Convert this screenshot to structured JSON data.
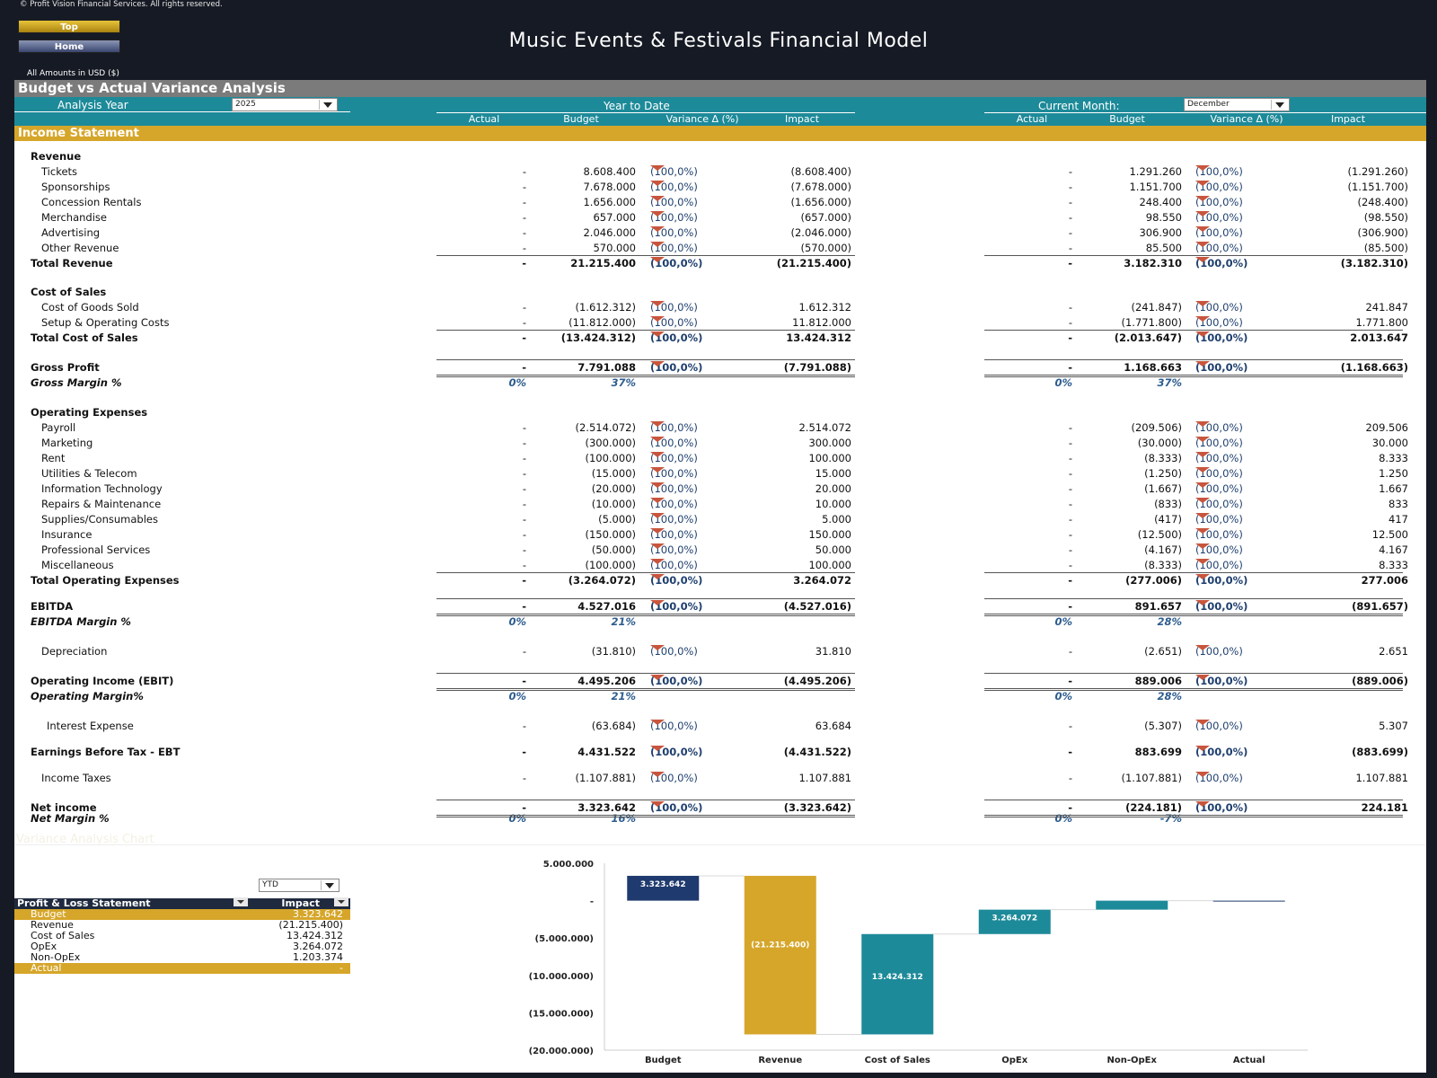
{
  "header": {
    "copyright": "© Profit Vision Financial Services. All rights reserved.",
    "nav_top": "Top",
    "nav_home": "Home",
    "title": "Music Events & Festivals Financial Model",
    "amounts_note": "All Amounts in  USD ($)"
  },
  "banner": "Budget vs Actual Variance Analysis",
  "controls": {
    "analysis_year_label": "Analysis Year",
    "analysis_year_value": "2025",
    "ytd_label": "Year to Date",
    "current_month_label": "Current Month:",
    "current_month_value": "December"
  },
  "columns": {
    "actual": "Actual",
    "budget": "Budget",
    "variance": "Variance Δ  (%)",
    "impact": "Impact"
  },
  "section_title": "Income Statement",
  "rows": [
    {
      "label": "Revenue",
      "style": "hdr"
    },
    {
      "label": "Tickets",
      "style": "item",
      "ya": "-",
      "yb": "8.608.400",
      "yv": "(100,0%)",
      "yi": "(8.608.400)",
      "ma": "-",
      "mb": "1.291.260",
      "mv": "(100,0%)",
      "mi": "(1.291.260)"
    },
    {
      "label": "Sponsorships",
      "style": "item",
      "ya": "-",
      "yb": "7.678.000",
      "yv": "(100,0%)",
      "yi": "(7.678.000)",
      "ma": "-",
      "mb": "1.151.700",
      "mv": "(100,0%)",
      "mi": "(1.151.700)"
    },
    {
      "label": "Concession Rentals",
      "style": "item",
      "ya": "-",
      "yb": "1.656.000",
      "yv": "(100,0%)",
      "yi": "(1.656.000)",
      "ma": "-",
      "mb": "248.400",
      "mv": "(100,0%)",
      "mi": "(248.400)"
    },
    {
      "label": "Merchandise",
      "style": "item",
      "ya": "-",
      "yb": "657.000",
      "yv": "(100,0%)",
      "yi": "(657.000)",
      "ma": "-",
      "mb": "98.550",
      "mv": "(100,0%)",
      "mi": "(98.550)"
    },
    {
      "label": "Advertising",
      "style": "item",
      "ya": "-",
      "yb": "2.046.000",
      "yv": "(100,0%)",
      "yi": "(2.046.000)",
      "ma": "-",
      "mb": "306.900",
      "mv": "(100,0%)",
      "mi": "(306.900)"
    },
    {
      "label": "Other Revenue",
      "style": "item",
      "ya": "-",
      "yb": "570.000",
      "yv": "(100,0%)",
      "yi": "(570.000)",
      "ma": "-",
      "mb": "85.500",
      "mv": "(100,0%)",
      "mi": "(85.500)"
    },
    {
      "label": "Total Revenue",
      "style": "total",
      "ya": "-",
      "yb": "21.215.400",
      "yv": "(100,0%)",
      "yi": "(21.215.400)",
      "ma": "-",
      "mb": "3.182.310",
      "mv": "(100,0%)",
      "mi": "(3.182.310)"
    },
    {
      "label": "Cost of Sales",
      "style": "hdr"
    },
    {
      "label": "Cost of Goods Sold",
      "style": "item",
      "ya": "-",
      "yb": "(1.612.312)",
      "yv": "(100,0%)",
      "yi": "1.612.312",
      "ma": "-",
      "mb": "(241.847)",
      "mv": "(100,0%)",
      "mi": "241.847"
    },
    {
      "label": "Setup & Operating Costs",
      "style": "item",
      "ya": "-",
      "yb": "(11.812.000)",
      "yv": "(100,0%)",
      "yi": "11.812.000",
      "ma": "-",
      "mb": "(1.771.800)",
      "mv": "(100,0%)",
      "mi": "1.771.800"
    },
    {
      "label": "Total Cost of Sales",
      "style": "total",
      "ya": "-",
      "yb": "(13.424.312)",
      "yv": "(100,0%)",
      "yi": "13.424.312",
      "ma": "-",
      "mb": "(2.013.647)",
      "mv": "(100,0%)",
      "mi": "2.013.647"
    },
    {
      "label": "Gross Profit",
      "style": "total",
      "ya": "-",
      "yb": "7.791.088",
      "yv": "(100,0%)",
      "yi": "(7.791.088)",
      "ma": "-",
      "mb": "1.168.663",
      "mv": "(100,0%)",
      "mi": "(1.168.663)"
    },
    {
      "label": "Gross Margin %",
      "style": "pct",
      "ya": "0%",
      "yb": "37%",
      "ma": "0%",
      "mb": "37%"
    },
    {
      "label": "Operating Expenses",
      "style": "hdr"
    },
    {
      "label": "Payroll",
      "style": "item",
      "ya": "-",
      "yb": "(2.514.072)",
      "yv": "(100,0%)",
      "yi": "2.514.072",
      "ma": "-",
      "mb": "(209.506)",
      "mv": "(100,0%)",
      "mi": "209.506"
    },
    {
      "label": "Marketing",
      "style": "item",
      "ya": "-",
      "yb": "(300.000)",
      "yv": "(100,0%)",
      "yi": "300.000",
      "ma": "-",
      "mb": "(30.000)",
      "mv": "(100,0%)",
      "mi": "30.000"
    },
    {
      "label": "Rent",
      "style": "item",
      "ya": "-",
      "yb": "(100.000)",
      "yv": "(100,0%)",
      "yi": "100.000",
      "ma": "-",
      "mb": "(8.333)",
      "mv": "(100,0%)",
      "mi": "8.333"
    },
    {
      "label": "Utilities & Telecom",
      "style": "item",
      "ya": "-",
      "yb": "(15.000)",
      "yv": "(100,0%)",
      "yi": "15.000",
      "ma": "-",
      "mb": "(1.250)",
      "mv": "(100,0%)",
      "mi": "1.250"
    },
    {
      "label": "Information Technology",
      "style": "item",
      "ya": "-",
      "yb": "(20.000)",
      "yv": "(100,0%)",
      "yi": "20.000",
      "ma": "-",
      "mb": "(1.667)",
      "mv": "(100,0%)",
      "mi": "1.667"
    },
    {
      "label": "Repairs & Maintenance",
      "style": "item",
      "ya": "-",
      "yb": "(10.000)",
      "yv": "(100,0%)",
      "yi": "10.000",
      "ma": "-",
      "mb": "(833)",
      "mv": "(100,0%)",
      "mi": "833"
    },
    {
      "label": "Supplies/Consumables",
      "style": "item",
      "ya": "-",
      "yb": "(5.000)",
      "yv": "(100,0%)",
      "yi": "5.000",
      "ma": "-",
      "mb": "(417)",
      "mv": "(100,0%)",
      "mi": "417"
    },
    {
      "label": "Insurance",
      "style": "item",
      "ya": "-",
      "yb": "(150.000)",
      "yv": "(100,0%)",
      "yi": "150.000",
      "ma": "-",
      "mb": "(12.500)",
      "mv": "(100,0%)",
      "mi": "12.500"
    },
    {
      "label": "Professional Services",
      "style": "item",
      "ya": "-",
      "yb": "(50.000)",
      "yv": "(100,0%)",
      "yi": "50.000",
      "ma": "-",
      "mb": "(4.167)",
      "mv": "(100,0%)",
      "mi": "4.167"
    },
    {
      "label": "Miscellaneous",
      "style": "item",
      "ya": "-",
      "yb": "(100.000)",
      "yv": "(100,0%)",
      "yi": "100.000",
      "ma": "-",
      "mb": "(8.333)",
      "mv": "(100,0%)",
      "mi": "8.333"
    },
    {
      "label": "Total Operating Expenses",
      "style": "total",
      "ya": "-",
      "yb": "(3.264.072)",
      "yv": "(100,0%)",
      "yi": "3.264.072",
      "ma": "-",
      "mb": "(277.006)",
      "mv": "(100,0%)",
      "mi": "277.006"
    },
    {
      "label": "EBITDA",
      "style": "total",
      "ya": "-",
      "yb": "4.527.016",
      "yv": "(100,0%)",
      "yi": "(4.527.016)",
      "ma": "-",
      "mb": "891.657",
      "mv": "(100,0%)",
      "mi": "(891.657)"
    },
    {
      "label": "EBITDA Margin %",
      "style": "pct",
      "ya": "0%",
      "yb": "21%",
      "ma": "0%",
      "mb": "28%"
    },
    {
      "label": "Depreciation",
      "style": "item",
      "ya": "-",
      "yb": "(31.810)",
      "yv": "(100,0%)",
      "yi": "31.810",
      "ma": "-",
      "mb": "(2.651)",
      "mv": "(100,0%)",
      "mi": "2.651"
    },
    {
      "label": "Operating Income (EBIT)",
      "style": "total",
      "ya": "-",
      "yb": "4.495.206",
      "yv": "(100,0%)",
      "yi": "(4.495.206)",
      "ma": "-",
      "mb": "889.006",
      "mv": "(100,0%)",
      "mi": "(889.006)"
    },
    {
      "label": "Operating Margin%",
      "style": "pct",
      "ya": "0%",
      "yb": "21%",
      "ma": "0%",
      "mb": "28%"
    },
    {
      "label": "Interest Expense",
      "style": "item2",
      "ya": "-",
      "yb": "(63.684)",
      "yv": "(100,0%)",
      "yi": "63.684",
      "ma": "-",
      "mb": "(5.307)",
      "mv": "(100,0%)",
      "mi": "5.307"
    },
    {
      "label": "Earnings Before Tax - EBT",
      "style": "total",
      "ya": "-",
      "yb": "4.431.522",
      "yv": "(100,0%)",
      "yi": "(4.431.522)",
      "ma": "-",
      "mb": "883.699",
      "mv": "(100,0%)",
      "mi": "(883.699)"
    },
    {
      "label": "Income Taxes",
      "style": "item",
      "ya": "-",
      "yb": "(1.107.881)",
      "yv": "(100,0%)",
      "yi": "1.107.881",
      "ma": "-",
      "mb": "(1.107.881)",
      "mv": "(100,0%)",
      "mi": "1.107.881"
    },
    {
      "label": "Net income",
      "style": "total",
      "ya": "-",
      "yb": "3.323.642",
      "yv": "(100,0%)",
      "yi": "(3.323.642)",
      "ma": "-",
      "mb": "(224.181)",
      "mv": "(100,0%)",
      "mi": "224.181"
    },
    {
      "label": "Net Margin %",
      "style": "pct",
      "ya": "0%",
      "yb": "16%",
      "ma": "0%",
      "mb": "-7%"
    }
  ],
  "chart_section_title": "Variance Analysis Chart",
  "pl_table": {
    "period_value": "YTD",
    "header_label": "Profit & Loss Statement",
    "header_value": "Impact",
    "rows": [
      {
        "label": "Budget",
        "value": "3.323.642",
        "gold": true
      },
      {
        "label": "Revenue",
        "value": "(21.215.400)"
      },
      {
        "label": "Cost of Sales",
        "value": "13.424.312"
      },
      {
        "label": "OpEx",
        "value": "3.264.072"
      },
      {
        "label": "Non-OpEx",
        "value": "1.203.374"
      },
      {
        "label": "Actual",
        "value": "-",
        "gold": true
      }
    ]
  },
  "chart_data": {
    "type": "waterfall",
    "categories": [
      "Budget",
      "Revenue",
      "Cost of Sales",
      "OpEx",
      "Non-OpEx",
      "Actual"
    ],
    "values": [
      3323642,
      -21215400,
      13424312,
      3264072,
      1203374,
      0
    ],
    "data_labels": [
      "3.323.642",
      "(21.215.400)",
      "13.424.312",
      "3.264.072",
      "",
      ""
    ],
    "yticks": [
      5000000,
      0,
      -5000000,
      -10000000,
      -15000000,
      -20000000
    ],
    "ytick_labels": [
      "5.000.000",
      "-",
      "(5.000.000)",
      "(10.000.000)",
      "(15.000.000)",
      "(20.000.000)"
    ],
    "ylim": [
      -20000000,
      5000000
    ],
    "colors": {
      "Budget": "#1f3a6e",
      "Revenue": "#d6a62a",
      "Cost of Sales": "#1d8a99",
      "OpEx": "#1d8a99",
      "Non-OpEx": "#1d8a99",
      "Actual": "#1f3a6e"
    }
  }
}
